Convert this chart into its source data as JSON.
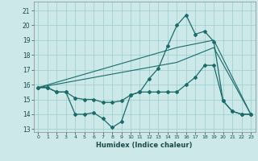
{
  "xlabel": "Humidex (Indice chaleur)",
  "bg_color": "#cce8e8",
  "grid_color": "#99cccc",
  "line_color": "#1a6b6b",
  "xlim": [
    -0.5,
    23.5
  ],
  "ylim": [
    12.8,
    21.6
  ],
  "yticks": [
    13,
    14,
    15,
    16,
    17,
    18,
    19,
    20,
    21
  ],
  "xticks": [
    0,
    1,
    2,
    3,
    4,
    5,
    6,
    7,
    8,
    9,
    10,
    11,
    12,
    13,
    14,
    15,
    16,
    17,
    18,
    19,
    20,
    21,
    22,
    23
  ],
  "line1_x": [
    0,
    1,
    2,
    3,
    4,
    5,
    6,
    7,
    8,
    9,
    10,
    11,
    12,
    13,
    14,
    15,
    16,
    17,
    18,
    19,
    20,
    21,
    22,
    23
  ],
  "line1_y": [
    15.8,
    15.8,
    15.5,
    15.5,
    14.0,
    14.0,
    14.1,
    13.7,
    13.1,
    13.5,
    15.3,
    15.5,
    16.4,
    17.1,
    18.6,
    20.0,
    20.7,
    19.4,
    19.6,
    18.9,
    14.9,
    14.2,
    14.0,
    14.0
  ],
  "line2_x": [
    0,
    1,
    2,
    3,
    4,
    5,
    6,
    7,
    8,
    9,
    10,
    11,
    12,
    13,
    14,
    15,
    16,
    17,
    18,
    19,
    20,
    21,
    22,
    23
  ],
  "line2_y": [
    15.8,
    15.8,
    15.5,
    15.5,
    15.1,
    15.0,
    15.0,
    14.8,
    14.8,
    14.9,
    15.3,
    15.5,
    15.5,
    15.5,
    15.5,
    15.5,
    16.0,
    16.5,
    17.3,
    17.3,
    14.9,
    14.2,
    14.0,
    14.0
  ],
  "line3_x": [
    0,
    23
  ],
  "line3_y": [
    15.8,
    14.0
  ],
  "line4_x": [
    0,
    23
  ],
  "line4_y": [
    15.8,
    14.0
  ],
  "line3_waypoints_x": [
    0,
    15,
    19,
    23
  ],
  "line3_waypoints_y": [
    15.8,
    18.5,
    19.0,
    14.0
  ],
  "line4_waypoints_x": [
    0,
    15,
    19,
    23
  ],
  "line4_waypoints_y": [
    15.8,
    17.5,
    18.5,
    14.0
  ]
}
